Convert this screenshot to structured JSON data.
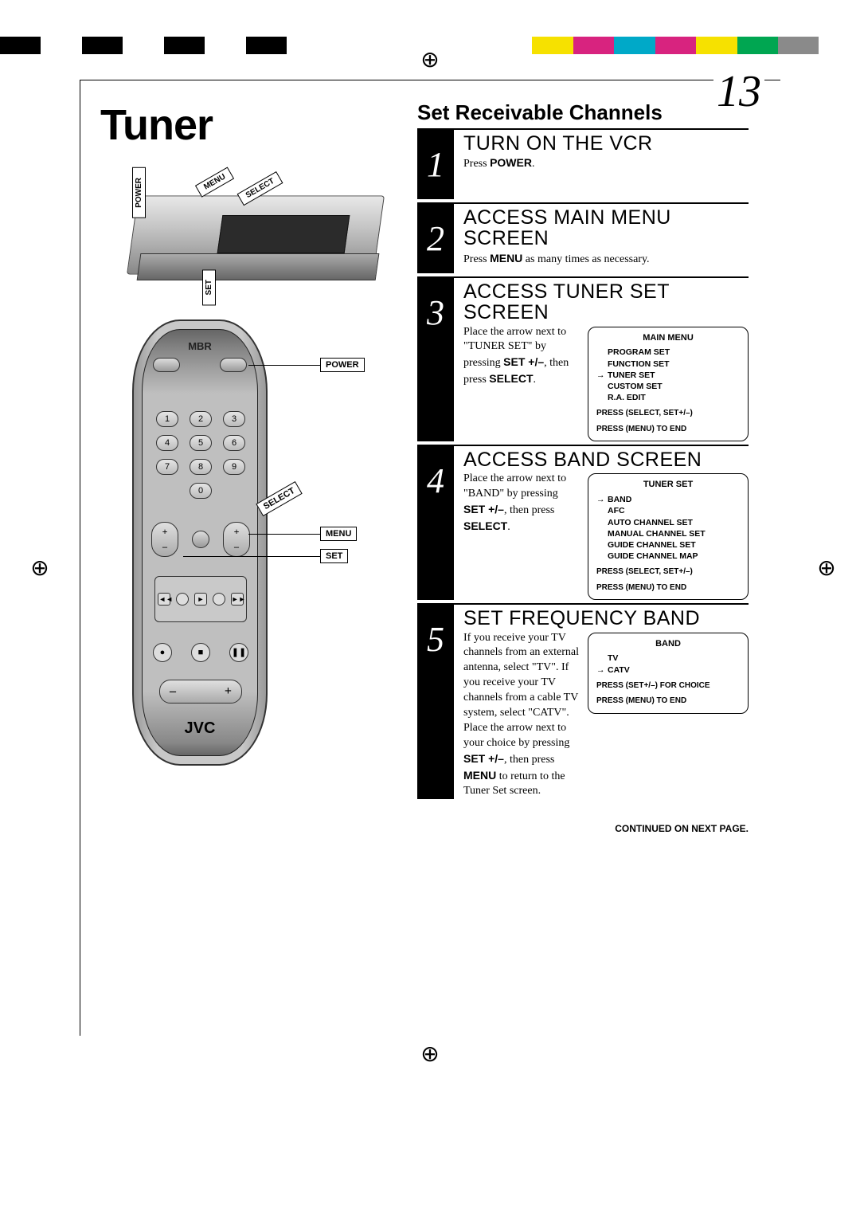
{
  "colorBar": [
    "#000000",
    "#ffffff",
    "#000000",
    "#ffffff",
    "#000000",
    "#ffffff",
    "#000000",
    "#ffffff",
    "#ffffff",
    "#ffffff",
    "#ffffff",
    "#ffffff",
    "#ffffff",
    "#f6e100",
    "#d8237f",
    "#00a9c8",
    "#d8237f",
    "#f6e100",
    "#00a651",
    "#8a8a8a",
    "#ffffff"
  ],
  "pageNumber": "13",
  "sectionTitle": "Tuner",
  "vcrCallouts": {
    "power": "POWER",
    "menu": "MENU",
    "select": "SELECT",
    "set": "SET"
  },
  "remote": {
    "brand": "MBR",
    "keypad": [
      "1",
      "2",
      "3",
      "4",
      "5",
      "6",
      "7",
      "8",
      "9",
      "0"
    ],
    "logo": "JVC",
    "labels": {
      "power": "POWER",
      "select": "SELECT",
      "menu": "MENU",
      "set": "SET"
    }
  },
  "subsectionTitle": "Set Receivable Channels",
  "steps": [
    {
      "num": "1",
      "title": "TURN ON THE VCR",
      "body": "Press <b>POWER</b>."
    },
    {
      "num": "2",
      "title": "ACCESS MAIN MENU SCREEN",
      "body": "Press <b>MENU</b> as many times as necessary."
    },
    {
      "num": "3",
      "title": "ACCESS TUNER SET SCREEN",
      "body": "Place the arrow next to \"TUNER SET\" by pressing <b>SET +/–</b>, then press <b>SELECT</b>.",
      "osd": {
        "title": "MAIN MENU",
        "items": [
          {
            "label": "PROGRAM SET",
            "arrow": false
          },
          {
            "label": "FUNCTION SET",
            "arrow": false
          },
          {
            "label": "TUNER SET",
            "arrow": true
          },
          {
            "label": "CUSTOM SET",
            "arrow": false
          },
          {
            "label": "R.A. EDIT",
            "arrow": false
          }
        ],
        "footer": [
          "PRESS (SELECT, SET+/–)",
          "PRESS (MENU) TO END"
        ]
      }
    },
    {
      "num": "4",
      "title": "ACCESS BAND SCREEN",
      "body": "Place the arrow next to \"BAND\" by pressing <b>SET +/–</b>, then press <b>SELECT</b>.",
      "osd": {
        "title": "TUNER SET",
        "items": [
          {
            "label": "BAND",
            "arrow": true
          },
          {
            "label": "AFC",
            "arrow": false
          },
          {
            "label": "AUTO CHANNEL SET",
            "arrow": false
          },
          {
            "label": "MANUAL CHANNEL SET",
            "arrow": false
          },
          {
            "label": "GUIDE CHANNEL SET",
            "arrow": false
          },
          {
            "label": "GUIDE CHANNEL MAP",
            "arrow": false
          }
        ],
        "footer": [
          "PRESS (SELECT, SET+/–)",
          "PRESS (MENU)  TO END"
        ]
      }
    },
    {
      "num": "5",
      "title": "SET FREQUENCY BAND",
      "body": "If you receive your TV channels from an external antenna, select \"TV\". If you receive your TV channels from a cable TV system, select \"CATV\". Place the arrow next to your choice by pressing <b>SET +/–</b>, then press <b>MENU</b> to return to the Tuner Set screen.",
      "osd": {
        "title": "BAND",
        "items": [
          {
            "label": "TV",
            "arrow": false
          },
          {
            "label": "CATV",
            "arrow": true
          }
        ],
        "footer": [
          "PRESS (SET+/–)   FOR CHOICE",
          "PRESS (MENU) TO END"
        ]
      }
    }
  ],
  "continued": "CONTINUED ON NEXT PAGE."
}
